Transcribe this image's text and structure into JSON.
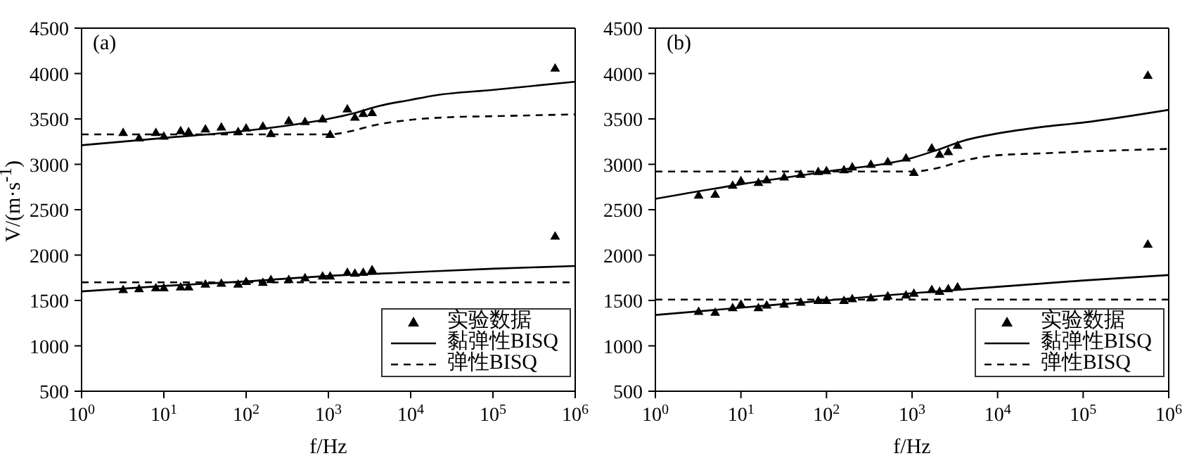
{
  "chart_data": [
    {
      "type": "line",
      "annotations": [
        "(a)"
      ],
      "xlabel": "f/Hz",
      "ylabel": "V/(m·s$^{-1}$)",
      "log": "x",
      "xlim": [
        1,
        1000000
      ],
      "xticks": [
        {
          "value": 1,
          "label": "10$^{0}$"
        },
        {
          "value": 10,
          "label": "10$^{1}$"
        },
        {
          "value": 100,
          "label": "10$^{2}$"
        },
        {
          "value": 1000,
          "label": "10$^{3}$"
        },
        {
          "value": 10000,
          "label": "10$^{4}$"
        },
        {
          "value": 100000,
          "label": "10$^{5}$"
        },
        {
          "value": 1000000,
          "label": "10$^{6}$"
        }
      ],
      "ylim": [
        500,
        4500
      ],
      "yticks": [
        500,
        1000,
        1500,
        2000,
        2500,
        3000,
        3500,
        4000,
        4500
      ],
      "grid": false,
      "legend": "bottom right",
      "series": [
        {
          "name": "实验数据",
          "type": "scatter",
          "marker": "triangle",
          "color": "#000000",
          "x": [
            3.2,
            5,
            8,
            10,
            16,
            20,
            32,
            50,
            80,
            100,
            160,
            200,
            330,
            520,
            850,
            1050,
            1700,
            2100,
            2650,
            3400,
            570000,
            3.2,
            5,
            8,
            10,
            16,
            20,
            32,
            50,
            80,
            100,
            160,
            200,
            330,
            520,
            850,
            1050,
            1700,
            2100,
            2650,
            3400,
            570000
          ],
          "values": [
            3350,
            3290,
            3350,
            3310,
            3370,
            3360,
            3390,
            3410,
            3360,
            3400,
            3420,
            3340,
            3480,
            3470,
            3500,
            3330,
            3610,
            3520,
            3560,
            3570,
            4060,
            1620,
            1630,
            1640,
            1640,
            1650,
            1650,
            1680,
            1690,
            1680,
            1710,
            1700,
            1730,
            1730,
            1750,
            1770,
            1770,
            1810,
            1800,
            1810,
            1840,
            2210
          ]
        },
        {
          "name": "黏弹性BISQ",
          "type": "line",
          "line_style": "solid",
          "marker": "none",
          "color": "#000000",
          "x": [
            1,
            10,
            100,
            1000,
            2000,
            4000,
            10000,
            20000,
            100000,
            1000000
          ],
          "values": [
            3210,
            3290,
            3370,
            3500,
            3560,
            3640,
            3710,
            3760,
            3820,
            3910
          ]
        },
        {
          "type": "line",
          "line_style": "solid",
          "marker": "none",
          "color": "#000000",
          "x": [
            1,
            10,
            100,
            1000,
            10000,
            100000,
            1000000
          ],
          "values": [
            1600,
            1660,
            1710,
            1770,
            1810,
            1850,
            1880
          ]
        },
        {
          "name": "弹性BISQ",
          "type": "line",
          "line_style": "dashed",
          "marker": "none",
          "color": "#000000",
          "x": [
            1,
            1000,
            2000,
            3200,
            10000,
            32000,
            100000,
            1000000
          ],
          "values": [
            3330,
            3330,
            3370,
            3420,
            3490,
            3520,
            3530,
            3550
          ]
        },
        {
          "type": "line",
          "line_style": "dashed",
          "marker": "none",
          "color": "#000000",
          "x": [
            1,
            1000000
          ],
          "values": [
            1700,
            1700
          ]
        }
      ]
    },
    {
      "type": "line",
      "annotations": [
        "(b)"
      ],
      "xlabel": "f/Hz",
      "log": "x",
      "xlim": [
        1,
        1000000
      ],
      "xticks": [
        {
          "value": 1,
          "label": "10$^{0}$"
        },
        {
          "value": 10,
          "label": "10$^{1}$"
        },
        {
          "value": 100,
          "label": "10$^{2}$"
        },
        {
          "value": 1000,
          "label": "10$^{3}$"
        },
        {
          "value": 10000,
          "label": "10$^{4}$"
        },
        {
          "value": 100000,
          "label": "10$^{5}$"
        },
        {
          "value": 1000000,
          "label": "10$^{6}$"
        }
      ],
      "ylim": [
        500,
        4500
      ],
      "yticks": [
        500,
        1000,
        1500,
        2000,
        2500,
        3000,
        3500,
        4000,
        4500
      ],
      "grid": false,
      "legend": "bottom right",
      "series": [
        {
          "name": "实验数据",
          "type": "scatter",
          "marker": "triangle",
          "color": "#000000",
          "x": [
            3.2,
            5,
            8,
            10,
            16,
            20,
            32,
            50,
            80,
            100,
            160,
            200,
            330,
            520,
            850,
            1050,
            1700,
            2100,
            2650,
            3400,
            570000,
            3.2,
            5,
            8,
            10,
            16,
            20,
            32,
            50,
            80,
            100,
            160,
            200,
            330,
            520,
            850,
            1050,
            1700,
            2100,
            2650,
            3400,
            570000
          ],
          "values": [
            2660,
            2670,
            2770,
            2820,
            2800,
            2830,
            2860,
            2890,
            2920,
            2930,
            2940,
            2970,
            3000,
            3030,
            3070,
            2910,
            3180,
            3110,
            3140,
            3210,
            3980,
            1380,
            1370,
            1420,
            1460,
            1420,
            1450,
            1460,
            1480,
            1500,
            1500,
            1500,
            1520,
            1530,
            1550,
            1560,
            1580,
            1620,
            1600,
            1630,
            1650,
            2120
          ]
        },
        {
          "name": "黏弹性BISQ",
          "type": "line",
          "line_style": "solid",
          "marker": "none",
          "color": "#000000",
          "x": [
            1,
            10,
            100,
            1000,
            2000,
            4000,
            10000,
            32000,
            100000,
            1000000
          ],
          "values": [
            2620,
            2780,
            2920,
            3070,
            3160,
            3260,
            3340,
            3410,
            3460,
            3600
          ]
        },
        {
          "type": "line",
          "line_style": "solid",
          "marker": "none",
          "color": "#000000",
          "x": [
            1,
            10,
            100,
            1000,
            10000,
            100000,
            1000000
          ],
          "values": [
            1340,
            1420,
            1500,
            1580,
            1650,
            1720,
            1780
          ]
        },
        {
          "name": "弹性BISQ",
          "type": "line",
          "line_style": "dashed",
          "marker": "none",
          "color": "#000000",
          "x": [
            1,
            1000,
            2000,
            4000,
            10000,
            32000,
            100000,
            1000000
          ],
          "values": [
            2920,
            2920,
            2960,
            3040,
            3100,
            3120,
            3140,
            3170
          ]
        },
        {
          "type": "line",
          "line_style": "dashed",
          "marker": "none",
          "color": "#000000",
          "x": [
            1,
            1000000
          ],
          "values": [
            1510,
            1510
          ]
        }
      ]
    }
  ]
}
